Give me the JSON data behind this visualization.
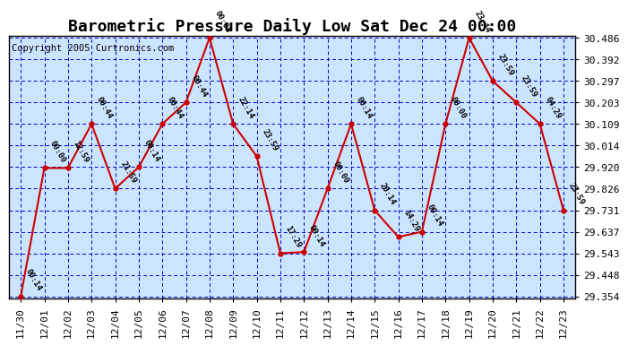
{
  "title": "Barometric Pressure Daily Low Sat Dec 24 00:00",
  "copyright": "Copyright 2005 Curtronics.com",
  "x_labels": [
    "11/30",
    "12/01",
    "12/02",
    "12/03",
    "12/04",
    "12/05",
    "12/06",
    "12/07",
    "12/08",
    "12/09",
    "12/10",
    "12/11",
    "12/12",
    "12/13",
    "12/14",
    "12/15",
    "12/16",
    "12/17",
    "12/18",
    "12/19",
    "12/20",
    "12/21",
    "12/22",
    "12/23"
  ],
  "y_values": [
    29.354,
    29.916,
    29.916,
    30.109,
    29.826,
    29.92,
    30.109,
    30.203,
    30.486,
    30.109,
    29.967,
    29.543,
    29.548,
    29.826,
    30.109,
    29.731,
    29.614,
    29.637,
    30.109,
    30.486,
    30.297,
    30.203,
    30.109,
    29.731
  ],
  "point_labels": [
    "00:14",
    "00:00",
    "12:59",
    "00:44",
    "21:59",
    "00:14",
    "00:44",
    "00:44",
    "00:08",
    "22:14",
    "23:59",
    "17:29",
    "00:14",
    "00:00",
    "00:14",
    "20:14",
    "14:29",
    "00:14",
    "00:00",
    "23:44",
    "23:59",
    "23:59",
    "04:29",
    "23:59"
  ],
  "ylim_min": 29.354,
  "ylim_max": 30.486,
  "yticks": [
    29.354,
    29.448,
    29.543,
    29.637,
    29.731,
    29.826,
    29.92,
    30.014,
    30.109,
    30.203,
    30.297,
    30.392,
    30.486
  ],
  "line_color": "#cc0000",
  "marker_color": "#cc0000",
  "grid_color": "#0000cc",
  "background_color": "#cce5ff",
  "plot_bg_color": "#cce5ff",
  "title_fontsize": 13,
  "copyright_fontsize": 7.5,
  "tick_label_fontsize": 8,
  "point_label_fontsize": 6.5
}
